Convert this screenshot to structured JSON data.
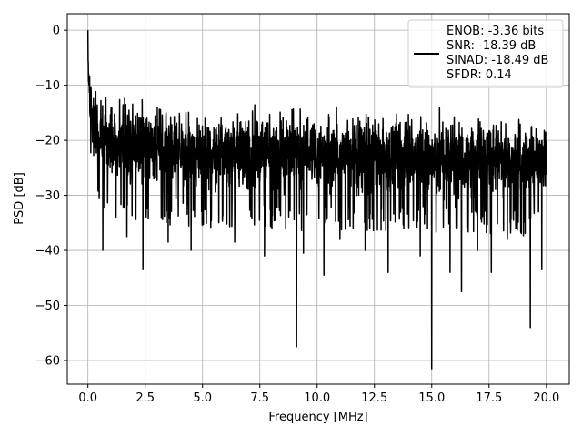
{
  "chart_data": {
    "type": "line",
    "title": "",
    "xlabel": "Frequency [MHz]",
    "ylabel": "PSD [dB]",
    "xlim": [
      -0.9,
      21.0
    ],
    "ylim": [
      -64.3,
      3.0
    ],
    "xticks": [
      0.0,
      2.5,
      5.0,
      7.5,
      10.0,
      12.5,
      15.0,
      17.5,
      20.0
    ],
    "xtick_labels": [
      "0.0",
      "2.5",
      "5.0",
      "7.5",
      "10.0",
      "12.5",
      "15.0",
      "17.5",
      "20.0"
    ],
    "yticks": [
      0,
      -10,
      -20,
      -30,
      -40,
      -50,
      -60
    ],
    "ytick_labels": [
      "0",
      "−10",
      "−20",
      "−30",
      "−40",
      "−50",
      "−60"
    ],
    "grid": true,
    "legend_position": "top-right",
    "legend_entries": [
      "ENOB: -3.36 bits",
      "SNR: -18.39 dB",
      "SINAD: -18.49 dB",
      "SFDR: 0.14"
    ],
    "series": [
      {
        "color": "#000000",
        "trend": {
          "x": [
            0.0,
            0.05,
            0.1,
            0.2,
            0.4,
            1.0,
            2.5,
            5.0,
            10.0,
            15.0,
            20.0
          ],
          "upper": [
            0.0,
            -3.0,
            -5.0,
            -7.0,
            -9.0,
            -10.0,
            -11.0,
            -12.0,
            -12.5,
            -13.0,
            -14.0
          ],
          "lower": [
            -8.0,
            -15.0,
            -20.0,
            -24.0,
            -27.0,
            -29.0,
            -30.0,
            -31.0,
            -31.5,
            -32.0,
            -32.5
          ]
        },
        "dips": [
          {
            "x": 0.65,
            "y": -40.0
          },
          {
            "x": 1.7,
            "y": -37.5
          },
          {
            "x": 2.4,
            "y": -43.5
          },
          {
            "x": 3.5,
            "y": -38.5
          },
          {
            "x": 4.5,
            "y": -40.0
          },
          {
            "x": 6.4,
            "y": -38.5
          },
          {
            "x": 7.7,
            "y": -41.0
          },
          {
            "x": 9.1,
            "y": -57.5
          },
          {
            "x": 9.4,
            "y": -40.5
          },
          {
            "x": 10.3,
            "y": -44.5
          },
          {
            "x": 11.0,
            "y": -38.0
          },
          {
            "x": 12.1,
            "y": -40.0
          },
          {
            "x": 13.1,
            "y": -44.0
          },
          {
            "x": 14.5,
            "y": -41.0
          },
          {
            "x": 15.0,
            "y": -61.5
          },
          {
            "x": 15.8,
            "y": -44.0
          },
          {
            "x": 16.3,
            "y": -47.5
          },
          {
            "x": 17.0,
            "y": -40.0
          },
          {
            "x": 17.6,
            "y": -44.0
          },
          {
            "x": 18.3,
            "y": -38.0
          },
          {
            "x": 19.3,
            "y": -54.0
          },
          {
            "x": 19.8,
            "y": -43.5
          }
        ]
      }
    ]
  }
}
